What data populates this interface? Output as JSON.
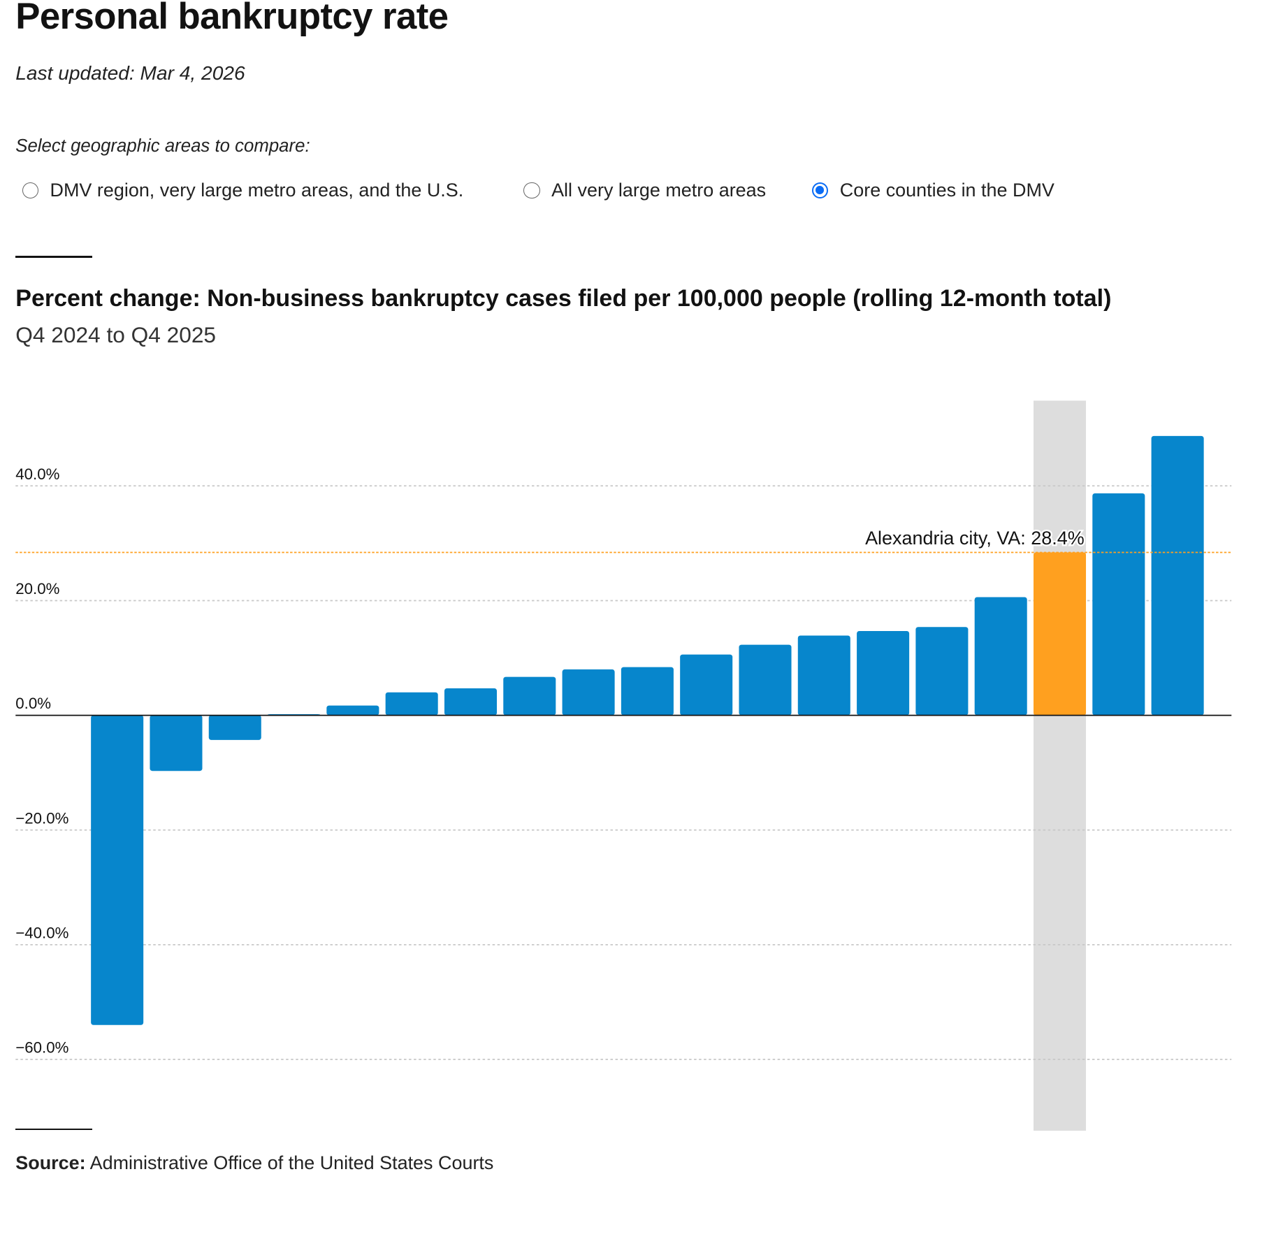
{
  "page": {
    "title": "Personal bankruptcy rate",
    "last_updated": "Last updated: Mar 4, 2026",
    "select_label": "Select geographic areas to compare:",
    "options": [
      {
        "label": "DMV region, very large metro areas, and the U.S.",
        "selected": false
      },
      {
        "label": "All very large metro areas",
        "selected": false
      },
      {
        "label": "Core counties in the DMV",
        "selected": true
      }
    ],
    "source_label": "Source:",
    "source_text": "Administrative Office of the United States Courts"
  },
  "colors": {
    "bar": "#0786cc",
    "highlight_bar": "#ffa01f",
    "highlight_band": "#dddddd",
    "grid": "#c8c8c8"
  },
  "chart_data": {
    "type": "bar",
    "title": "Percent change: Non-business bankruptcy cases filed per 100,000 people (rolling 12-month total)",
    "subtitle": "Q4 2024 to Q4 2025",
    "values": [
      -54.0,
      -9.7,
      -4.3,
      0.2,
      1.7,
      4.0,
      4.7,
      6.7,
      8.0,
      8.4,
      10.6,
      12.3,
      13.9,
      14.7,
      15.4,
      20.6,
      28.4,
      38.7,
      48.7
    ],
    "highlight_index": 16,
    "highlight_label": "Alexandria city, VA: 28.4%",
    "yticks": [
      40,
      20,
      0,
      -20,
      -40,
      -60
    ],
    "ytick_labels": [
      "40.0%",
      "20.0%",
      "0.0%",
      "−20.0%",
      "−40.0%",
      "−60.0%"
    ],
    "ylim": [
      -72,
      55
    ],
    "grid": true
  }
}
